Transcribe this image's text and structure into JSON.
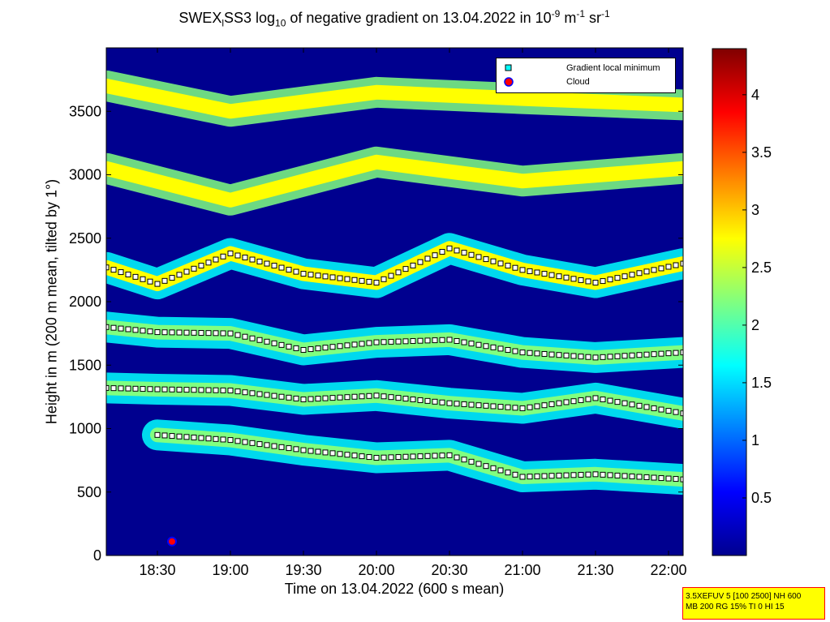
{
  "chart_data": {
    "type": "heatmap",
    "title": {
      "main": "SWEX",
      "sub1": "l",
      "mid": "SS3 log",
      "sub2": "10",
      "rest": " of negative gradient on 13.04.2022 in 10",
      "sup1": "-9",
      "unit1": " m",
      "sup2": "-1",
      "unit2": " sr",
      "sup3": "-1"
    },
    "xlabel": "Time on 13.04.2022 (600 s mean)",
    "ylabel": "Height in m (200 m mean, tilted by 1°)",
    "x_range": [
      "18:09",
      "22:06"
    ],
    "y_range": [
      0,
      4000
    ],
    "x_ticks": [
      "18:30",
      "19:00",
      "19:30",
      "20:00",
      "20:30",
      "21:00",
      "21:30",
      "22:00"
    ],
    "y_ticks": [
      0,
      500,
      1000,
      1500,
      2000,
      2500,
      3000,
      3500
    ],
    "colorbar": {
      "ticks": [
        0.5,
        1,
        1.5,
        2,
        2.5,
        3,
        3.5,
        4
      ],
      "range": [
        0,
        4.4
      ],
      "colormap": [
        "#00008f",
        "#0000ff",
        "#0080ff",
        "#00ffff",
        "#80ff80",
        "#ffff00",
        "#ff8000",
        "#ff0000",
        "#800000"
      ]
    },
    "legend": {
      "position": "top-right",
      "entries": [
        {
          "label": "Gradient local minimum",
          "marker": "cyan-square"
        },
        {
          "label": "Cloud",
          "marker": "red-circle-blue-edge"
        }
      ]
    },
    "layers": [
      {
        "t": [
          "18:09",
          "18:30",
          "19:00",
          "19:30",
          "20:00",
          "20:30",
          "21:00",
          "21:30",
          "22:06"
        ],
        "h": [
          1320,
          1310,
          1300,
          1230,
          1260,
          1200,
          1160,
          1240,
          1120
        ],
        "level": 2.2
      },
      {
        "t": [
          "18:09",
          "18:30",
          "19:00",
          "19:30",
          "20:00",
          "20:30",
          "21:00",
          "21:30",
          "22:06"
        ],
        "h": [
          1800,
          1760,
          1750,
          1620,
          1680,
          1700,
          1600,
          1560,
          1600
        ],
        "level": 2.3
      },
      {
        "t": [
          "18:09",
          "18:30",
          "19:00",
          "19:30",
          "20:00",
          "20:30",
          "21:00",
          "21:30",
          "22:06"
        ],
        "h": [
          2270,
          2140,
          2380,
          2220,
          2150,
          2420,
          2250,
          2150,
          2300
        ],
        "level": 2.6
      },
      {
        "t": [
          "18:30",
          "19:00",
          "19:30",
          "20:00",
          "20:30",
          "21:00",
          "21:30",
          "22:06"
        ],
        "h": [
          950,
          910,
          830,
          770,
          790,
          620,
          640,
          600
        ],
        "level": 2.0
      },
      {
        "t": [
          "18:09",
          "19:00",
          "20:00",
          "21:00",
          "22:06"
        ],
        "h": [
          3050,
          2800,
          3100,
          2950,
          3050
        ],
        "level": 2.9
      },
      {
        "t": [
          "18:09",
          "19:00",
          "20:00",
          "21:00",
          "22:06"
        ],
        "h": [
          3700,
          3500,
          3650,
          3600,
          3550
        ],
        "level": 3.0
      }
    ],
    "cloud_points": [
      {
        "t": "18:36",
        "h": 110
      }
    ]
  },
  "info_box": {
    "line1": "3.5XEFUV 5 [100 2500] NH 600",
    "line2": "MB 200 RG 15% TI 0 HI 15"
  }
}
